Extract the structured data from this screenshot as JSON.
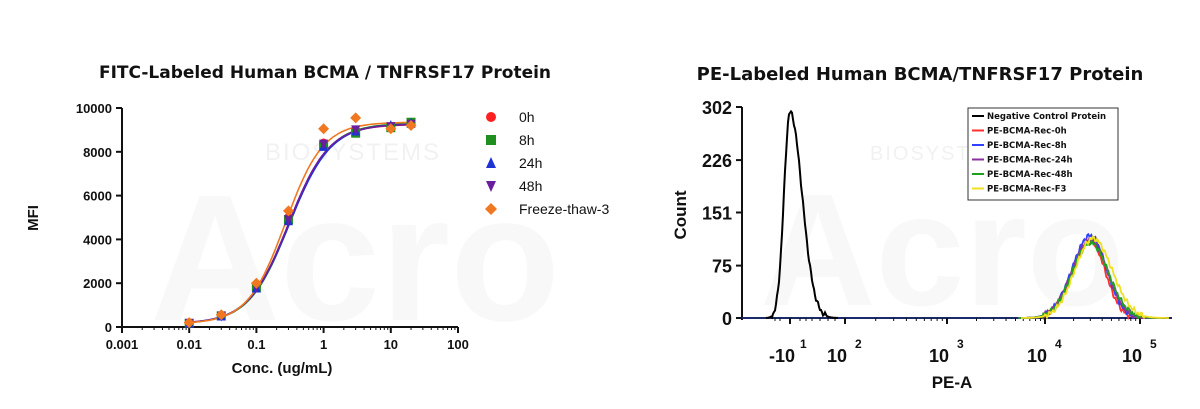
{
  "watermark": {
    "brand": "Acro",
    "sub": "BIOSYSTEMS"
  },
  "chart_data": [
    {
      "type": "scatter",
      "title": "FITC-Labeled Human BCMA / TNFRSF17 Protein",
      "xlabel": "Conc. (ug/mL)",
      "ylabel": "MFI",
      "xscale": "log",
      "xlim": [
        0.001,
        100
      ],
      "ylim": [
        0,
        10000
      ],
      "xticks": [
        "0.001",
        "0.01",
        "0.1",
        "1",
        "10",
        "100"
      ],
      "yticks": [
        "0",
        "2000",
        "4000",
        "6000",
        "8000",
        "10000"
      ],
      "legend_position": "right",
      "x": [
        0.01,
        0.03,
        0.1,
        0.3,
        1,
        3,
        10,
        20
      ],
      "series": [
        {
          "name": "0h",
          "marker": "circle",
          "color": "#ff2020",
          "values": [
            180,
            520,
            1850,
            5000,
            8400,
            9000,
            9150,
            9250
          ]
        },
        {
          "name": "8h",
          "marker": "square",
          "color": "#1f8f1f",
          "values": [
            170,
            510,
            1800,
            4900,
            8300,
            8850,
            9100,
            9350
          ]
        },
        {
          "name": "24h",
          "marker": "triangle",
          "color": "#1f32d6",
          "values": [
            175,
            500,
            1780,
            4850,
            8250,
            8950,
            9200,
            9300
          ]
        },
        {
          "name": "48h",
          "marker": "triangle-down",
          "color": "#6a1fa0",
          "values": [
            165,
            505,
            1820,
            4900,
            8350,
            9000,
            9150,
            9250
          ]
        },
        {
          "name": "Freeze-thaw-3",
          "marker": "diamond",
          "color": "#f07820",
          "values": [
            200,
            560,
            2000,
            5300,
            9050,
            9550,
            9050,
            9200
          ]
        }
      ]
    },
    {
      "type": "line",
      "title": "PE-Labeled Human BCMA/TNFRSF17 Protein",
      "xlabel": "PE-A",
      "ylabel": "Count",
      "ylim": [
        0,
        302
      ],
      "yticks": [
        "0",
        "75",
        "151",
        "226",
        "302"
      ],
      "xticks": [
        {
          "base": "-10",
          "exp": "1"
        },
        {
          "base": "10",
          "exp": "2"
        },
        {
          "base": "10",
          "exp": "3"
        },
        {
          "base": "10",
          "exp": "4"
        },
        {
          "base": "10",
          "exp": "5"
        }
      ],
      "legend_position": "top-right",
      "series": [
        {
          "name": "Negative Control Protein",
          "color": "#000000",
          "peak_position": -10,
          "peak_count": 295
        },
        {
          "name": "PE-BCMA-Rec-0h",
          "color": "#ff3030",
          "peak_position": 30000,
          "peak_count": 110
        },
        {
          "name": "PE-BCMA-Rec-8h",
          "color": "#3040ff",
          "peak_position": 30000,
          "peak_count": 118
        },
        {
          "name": "PE-BCMA-Rec-24h",
          "color": "#8a30a0",
          "peak_position": 30000,
          "peak_count": 112
        },
        {
          "name": "PE-BCMA-Rec-48h",
          "color": "#20a020",
          "peak_position": 30000,
          "peak_count": 108
        },
        {
          "name": "PE-BCMA-Rec-F3",
          "color": "#f0e020",
          "peak_position": 32000,
          "peak_count": 114
        }
      ]
    }
  ]
}
